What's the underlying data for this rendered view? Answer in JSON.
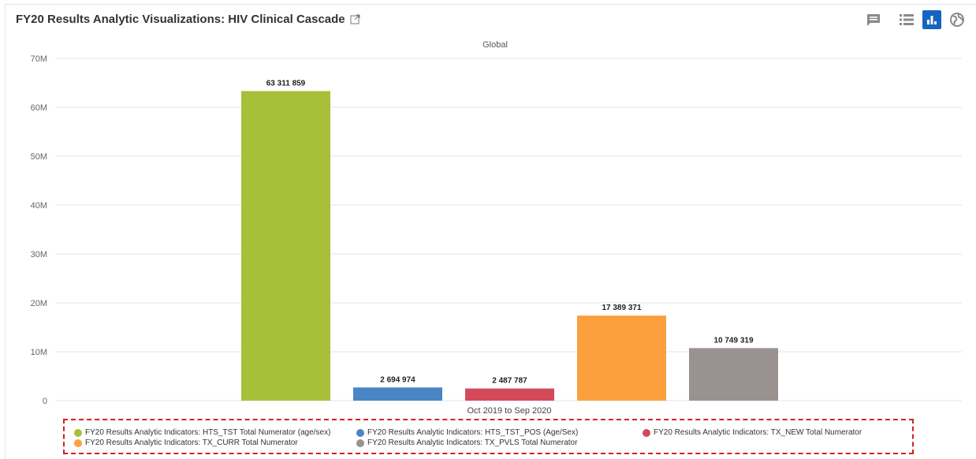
{
  "header": {
    "title": "FY20 Results Analytic Visualizations: HIV Clinical Cascade",
    "icons": {
      "external": "external-link-icon",
      "comment": "comment-icon",
      "table": "table-view-icon",
      "chart": "chart-view-icon",
      "map": "map-view-icon"
    },
    "accent_color": "#1565c0"
  },
  "chart_data": {
    "type": "bar",
    "title": "Global",
    "categories": [
      "Oct 2019 to Sep 2020"
    ],
    "series": [
      {
        "name": "FY20 Results Analytic Indicators: HTS_TST Total Numerator (age/sex)",
        "value": 63311859,
        "label": "63 311 859",
        "color": "#a8bf3a"
      },
      {
        "name": "FY20 Results Analytic Indicators: HTS_TST_POS (Age/Sex)",
        "value": 2694974,
        "label": "2 694 974",
        "color": "#4a86c5"
      },
      {
        "name": "FY20 Results Analytic Indicators: TX_NEW Total Numerator",
        "value": 2487787,
        "label": "2 487 787",
        "color": "#d44a5a"
      },
      {
        "name": "FY20 Results Analytic Indicators: TX_CURR Total Numerator",
        "value": 17389371,
        "label": "17 389 371",
        "color": "#fba03c"
      },
      {
        "name": "FY20 Results Analytic Indicators: TX_PVLS Total Numerator",
        "value": 10749319,
        "label": "10 749 319",
        "color": "#9a9290"
      }
    ],
    "ylim": [
      0,
      70000000
    ],
    "yticks": [
      {
        "value": 0,
        "label": "0"
      },
      {
        "value": 10000000,
        "label": "10M"
      },
      {
        "value": 20000000,
        "label": "20M"
      },
      {
        "value": 30000000,
        "label": "30M"
      },
      {
        "value": 40000000,
        "label": "40M"
      },
      {
        "value": 50000000,
        "label": "50M"
      },
      {
        "value": 60000000,
        "label": "60M"
      },
      {
        "value": 70000000,
        "label": "70M"
      }
    ],
    "grid": true,
    "legend_position": "bottom"
  }
}
